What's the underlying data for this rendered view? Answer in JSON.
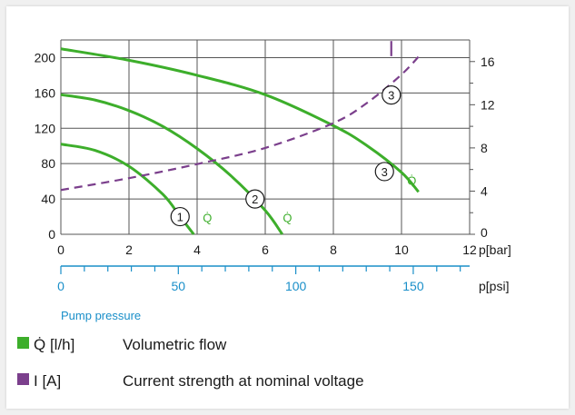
{
  "colors": {
    "flow": "#3dae2b",
    "current": "#7b3f8c",
    "psi_axis": "#1a8fc9",
    "grid": "#555555",
    "text": "#1a1a1a"
  },
  "chart_data": {
    "type": "line",
    "grid": true,
    "x_axis": {
      "range": [
        0,
        12
      ],
      "ticks": [
        "0",
        "2",
        "4",
        "6",
        "8",
        "10",
        "12"
      ],
      "unit_label": "p[bar]"
    },
    "x_axis_psi": {
      "range": [
        0,
        174
      ],
      "ticks": [
        "0",
        "50",
        "100",
        "150"
      ],
      "unit_label": "p[psi]",
      "title": "Pump pressure"
    },
    "y_left": {
      "range": [
        0,
        220
      ],
      "ticks": [
        "0",
        "40",
        "80",
        "120",
        "160",
        "200"
      ]
    },
    "y_right": {
      "range": [
        0,
        18
      ],
      "ticks": [
        "0",
        "4",
        "8",
        "12",
        "16"
      ]
    },
    "series": [
      {
        "name": "Q̇",
        "marker": "1",
        "axis": "left",
        "style": "solid",
        "x": [
          0,
          1,
          2,
          3,
          3.5,
          3.9
        ],
        "y": [
          102,
          95,
          77,
          45,
          20,
          0
        ]
      },
      {
        "name": "Q̇",
        "marker": "2",
        "axis": "left",
        "style": "solid",
        "x": [
          0,
          1,
          2,
          3,
          4,
          5,
          6,
          6.5
        ],
        "y": [
          158,
          152,
          140,
          122,
          97,
          66,
          27,
          0
        ]
      },
      {
        "name": "Q̇",
        "marker": "3",
        "axis": "left",
        "style": "solid",
        "x": [
          0,
          2,
          4,
          6,
          8,
          9,
          10,
          10.5
        ],
        "y": [
          210,
          197,
          180,
          158,
          123,
          100,
          70,
          48
        ]
      },
      {
        "name": "I",
        "marker": "3",
        "axis": "right",
        "style": "dashed",
        "x": [
          0,
          2,
          4,
          6,
          8,
          9,
          10,
          10.6
        ],
        "y": [
          4.1,
          5.2,
          6.5,
          8.0,
          10.3,
          12.2,
          14.8,
          16.8
        ]
      }
    ],
    "series_flow_label": "Q̇",
    "markers": [
      "1",
      "2",
      "3",
      "3"
    ],
    "legend": [
      {
        "symbol": "Q̇ [l/h]",
        "text": "Volumetric flow"
      },
      {
        "symbol": "I [A]",
        "text": "Current strength at nominal voltage"
      }
    ]
  }
}
